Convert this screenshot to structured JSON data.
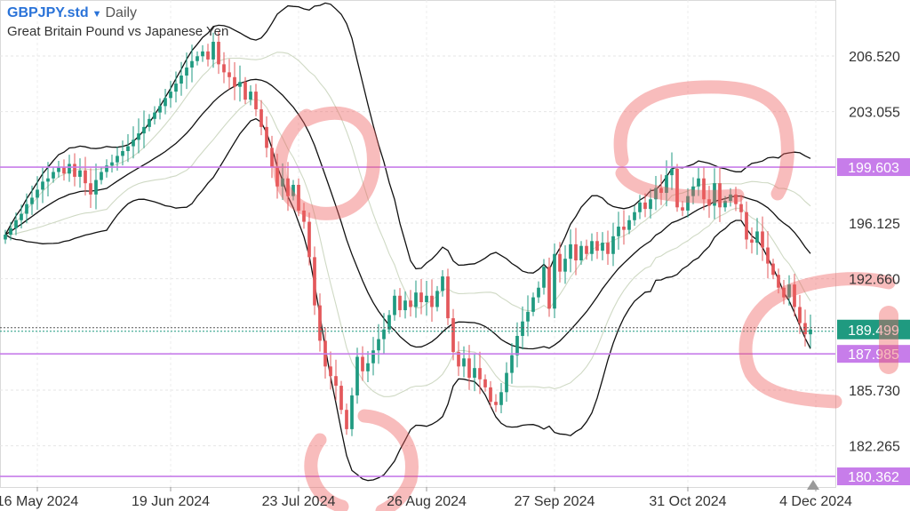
{
  "header": {
    "symbol": "GBPJPY.std",
    "timeframe": "Daily",
    "description": "Great Britain Pound vs Japanese Yen"
  },
  "chart_data": {
    "type": "candlestick",
    "title": "GBPJPY.std",
    "subtitle": "Great Britain Pound vs Japanese Yen",
    "ylim": [
      179.7,
      210.0
    ],
    "y_ticks": [
      182.265,
      185.73,
      192.66,
      196.125,
      203.055,
      206.52
    ],
    "y_tick_labels": [
      "182.265",
      "185.730",
      "192.660",
      "196.125",
      "203.055",
      "206.520"
    ],
    "x_ticks": [
      {
        "label": "16 May 2024",
        "index": 6
      },
      {
        "label": "19 Jun 2024",
        "index": 31
      },
      {
        "label": "23 Jul 2024",
        "index": 55
      },
      {
        "label": "26 Aug 2024",
        "index": 79
      },
      {
        "label": "27 Sep 2024",
        "index": 103
      },
      {
        "label": "31 Oct 2024",
        "index": 128
      },
      {
        "label": "4 Dec 2024",
        "index": 152
      }
    ],
    "horizontal_lines": [
      {
        "value": 199.603,
        "label": "199.603",
        "color": "#c77dea"
      },
      {
        "value": 187.985,
        "label": "187.985",
        "color": "#c77dea"
      },
      {
        "value": 180.362,
        "label": "180.362",
        "color": "#c77dea"
      }
    ],
    "current_price": {
      "value": 189.499,
      "label": "189.499",
      "color": "#1f9a80"
    },
    "close": [
      195.4,
      195.8,
      196.3,
      196.7,
      197.3,
      197.7,
      198.2,
      198.7,
      198.9,
      199.3,
      199.6,
      199.2,
      199.8,
      199.0,
      199.4,
      198.6,
      197.9,
      198.8,
      199.3,
      199.7,
      199.9,
      200.3,
      200.6,
      200.9,
      201.3,
      201.7,
      202.1,
      202.6,
      203.0,
      203.4,
      203.9,
      204.3,
      204.8,
      205.3,
      205.8,
      206.2,
      206.5,
      206.8,
      206.3,
      207.4,
      206.0,
      205.5,
      205.2,
      204.6,
      204.9,
      203.8,
      204.3,
      203.2,
      202.1,
      200.8,
      199.6,
      198.4,
      198.9,
      197.8,
      198.5,
      196.9,
      196.2,
      194.0,
      191.0,
      188.8,
      187.2,
      186.6,
      186.0,
      184.5,
      183.3,
      185.4,
      187.8,
      186.9,
      187.4,
      188.2,
      188.9,
      189.5,
      190.4,
      191.6,
      190.7,
      191.3,
      190.9,
      191.8,
      191.2,
      191.6,
      190.9,
      191.9,
      192.8,
      190.2,
      188.1,
      187.2,
      187.7,
      186.5,
      187.1,
      186.4,
      185.9,
      185.0,
      184.8,
      185.6,
      186.8,
      187.9,
      189.1,
      190.0,
      190.6,
      191.5,
      192.1,
      193.4,
      190.8,
      194.2,
      193.1,
      193.9,
      194.8,
      193.8,
      194.7,
      194.2,
      195.0,
      194.4,
      194.9,
      194.2,
      195.3,
      195.9,
      195.7,
      196.3,
      196.8,
      197.4,
      197.0,
      197.6,
      198.3,
      198.0,
      199.1,
      199.5,
      197.1,
      196.9,
      197.8,
      198.4,
      198.9,
      197.6,
      197.2,
      198.6,
      197.1,
      197.5,
      197.9,
      197.3,
      196.8,
      195.1,
      194.9,
      195.6,
      194.6,
      193.6,
      192.9,
      192.1,
      191.5,
      192.3,
      190.9,
      189.9,
      189.2,
      189.499
    ],
    "bb_period": 20,
    "bb_inner_sigma": 1.0,
    "bb_outer_sigma": 2.0,
    "bull_color": "#1f9a80",
    "bear_color": "#e3585b",
    "grid": "horizontal+vertical dashed",
    "highlight_circles": 5
  }
}
